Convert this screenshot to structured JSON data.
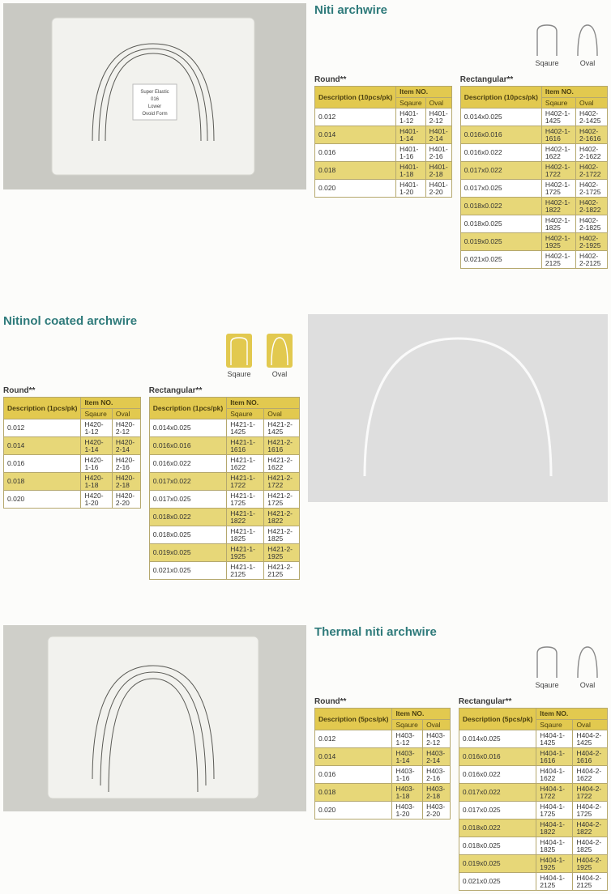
{
  "colors": {
    "title": "#2e7a7a",
    "header_bg": "#e2c94f",
    "alt_row_bg": "#e7d778",
    "border": "#b5a86e",
    "page_bg": "#fcfcfa",
    "photo_bg": "#d8d8d4"
  },
  "shape_labels": {
    "square": "Sqaure",
    "oval": "Oval"
  },
  "section1": {
    "title": "Niti archwire",
    "photo_label_lines": [
      "Super Elastic",
      "016",
      "Lower",
      "Ovoid Form"
    ],
    "round": {
      "label": "Round**",
      "header_desc": "Description (10pcs/pk)",
      "header_item": "Item NO.",
      "cols": [
        "Sqaure",
        "Oval"
      ],
      "rows": [
        {
          "d": "0.012",
          "s": "H401-1-12",
          "o": "H401-2-12"
        },
        {
          "d": "0.014",
          "s": "H401-1-14",
          "o": "H401-2-14"
        },
        {
          "d": "0.016",
          "s": "H401-1-16",
          "o": "H401-2-16"
        },
        {
          "d": "0.018",
          "s": "H401-1-18",
          "o": "H401-2-18"
        },
        {
          "d": "0.020",
          "s": "H401-1-20",
          "o": "H401-2-20"
        }
      ]
    },
    "rect": {
      "label": "Rectangular**",
      "header_desc": "Description (10pcs/pk)",
      "header_item": "Item NO.",
      "cols": [
        "Sqaure",
        "Oval"
      ],
      "rows": [
        {
          "d": "0.014x0.025",
          "s": "H402-1-1425",
          "o": "H402-2-1425"
        },
        {
          "d": "0.016x0.016",
          "s": "H402-1-1616",
          "o": "H402-2-1616"
        },
        {
          "d": "0.016x0.022",
          "s": "H402-1-1622",
          "o": "H402-2-1622"
        },
        {
          "d": "0.017x0.022",
          "s": "H402-1-1722",
          "o": "H402-2-1722"
        },
        {
          "d": "0.017x0.025",
          "s": "H402-1-1725",
          "o": "H402-2-1725"
        },
        {
          "d": "0.018x0.022",
          "s": "H402-1-1822",
          "o": "H402-2-1822"
        },
        {
          "d": "0.018x0.025",
          "s": "H402-1-1825",
          "o": "H402-2-1825"
        },
        {
          "d": "0.019x0.025",
          "s": "H402-1-1925",
          "o": "H402-2-1925"
        },
        {
          "d": "0.021x0.025",
          "s": "H402-1-2125",
          "o": "H402-2-2125"
        }
      ]
    }
  },
  "section2": {
    "title": "Nitinol coated archwire",
    "round": {
      "label": "Round**",
      "header_desc": "Description (1pcs/pk)",
      "header_item": "Item NO.",
      "cols": [
        "Sqaure",
        "Oval"
      ],
      "rows": [
        {
          "d": "0.012",
          "s": "H420-1-12",
          "o": "H420-2-12"
        },
        {
          "d": "0.014",
          "s": "H420-1-14",
          "o": "H420-2-14"
        },
        {
          "d": "0.016",
          "s": "H420-1-16",
          "o": "H420-2-16"
        },
        {
          "d": "0.018",
          "s": "H420-1-18",
          "o": "H420-2-18"
        },
        {
          "d": "0.020",
          "s": "H420-1-20",
          "o": "H420-2-20"
        }
      ]
    },
    "rect": {
      "label": "Rectangular**",
      "header_desc": "Description (1pcs/pk)",
      "header_item": "Item NO.",
      "cols": [
        "Sqaure",
        "Oval"
      ],
      "rows": [
        {
          "d": "0.014x0.025",
          "s": "H421-1-1425",
          "o": "H421-2-1425"
        },
        {
          "d": "0.016x0.016",
          "s": "H421-1-1616",
          "o": "H421-2-1616"
        },
        {
          "d": "0.016x0.022",
          "s": "H421-1-1622",
          "o": "H421-2-1622"
        },
        {
          "d": "0.017x0.022",
          "s": "H421-1-1722",
          "o": "H421-2-1722"
        },
        {
          "d": "0.017x0.025",
          "s": "H421-1-1725",
          "o": "H421-2-1725"
        },
        {
          "d": "0.018x0.022",
          "s": "H421-1-1822",
          "o": "H421-2-1822"
        },
        {
          "d": "0.018x0.025",
          "s": "H421-1-1825",
          "o": "H421-2-1825"
        },
        {
          "d": "0.019x0.025",
          "s": "H421-1-1925",
          "o": "H421-2-1925"
        },
        {
          "d": "0.021x0.025",
          "s": "H421-1-2125",
          "o": "H421-2-2125"
        }
      ]
    }
  },
  "section3": {
    "title": "Thermal niti archwire",
    "round": {
      "label": "Round**",
      "header_desc": "Description (5pcs/pk)",
      "header_item": "Item NO.",
      "cols": [
        "Sqaure",
        "Oval"
      ],
      "rows": [
        {
          "d": "0.012",
          "s": "H403-1-12",
          "o": "H403-2-12"
        },
        {
          "d": "0.014",
          "s": "H403-1-14",
          "o": "H403-2-14"
        },
        {
          "d": "0.016",
          "s": "H403-1-16",
          "o": "H403-2-16"
        },
        {
          "d": "0.018",
          "s": "H403-1-18",
          "o": "H403-2-18"
        },
        {
          "d": "0.020",
          "s": "H403-1-20",
          "o": "H403-2-20"
        }
      ]
    },
    "rect": {
      "label": "Rectangular**",
      "header_desc": "Description (5pcs/pk)",
      "header_item": "Item NO.",
      "cols": [
        "Sqaure",
        "Oval"
      ],
      "rows": [
        {
          "d": "0.014x0.025",
          "s": "H404-1-1425",
          "o": "H404-2-1425"
        },
        {
          "d": "0.016x0.016",
          "s": "H404-1-1616",
          "o": "H404-2-1616"
        },
        {
          "d": "0.016x0.022",
          "s": "H404-1-1622",
          "o": "H404-2-1622"
        },
        {
          "d": "0.017x0.022",
          "s": "H404-1-1722",
          "o": "H404-2-1722"
        },
        {
          "d": "0.017x0.025",
          "s": "H404-1-1725",
          "o": "H404-2-1725"
        },
        {
          "d": "0.018x0.022",
          "s": "H404-1-1822",
          "o": "H404-2-1822"
        },
        {
          "d": "0.018x0.025",
          "s": "H404-1-1825",
          "o": "H404-2-1825"
        },
        {
          "d": "0.019x0.025",
          "s": "H404-1-1925",
          "o": "H404-2-1925"
        },
        {
          "d": "0.021x0.025",
          "s": "H404-1-2125",
          "o": "H404-2-2125"
        }
      ]
    }
  }
}
